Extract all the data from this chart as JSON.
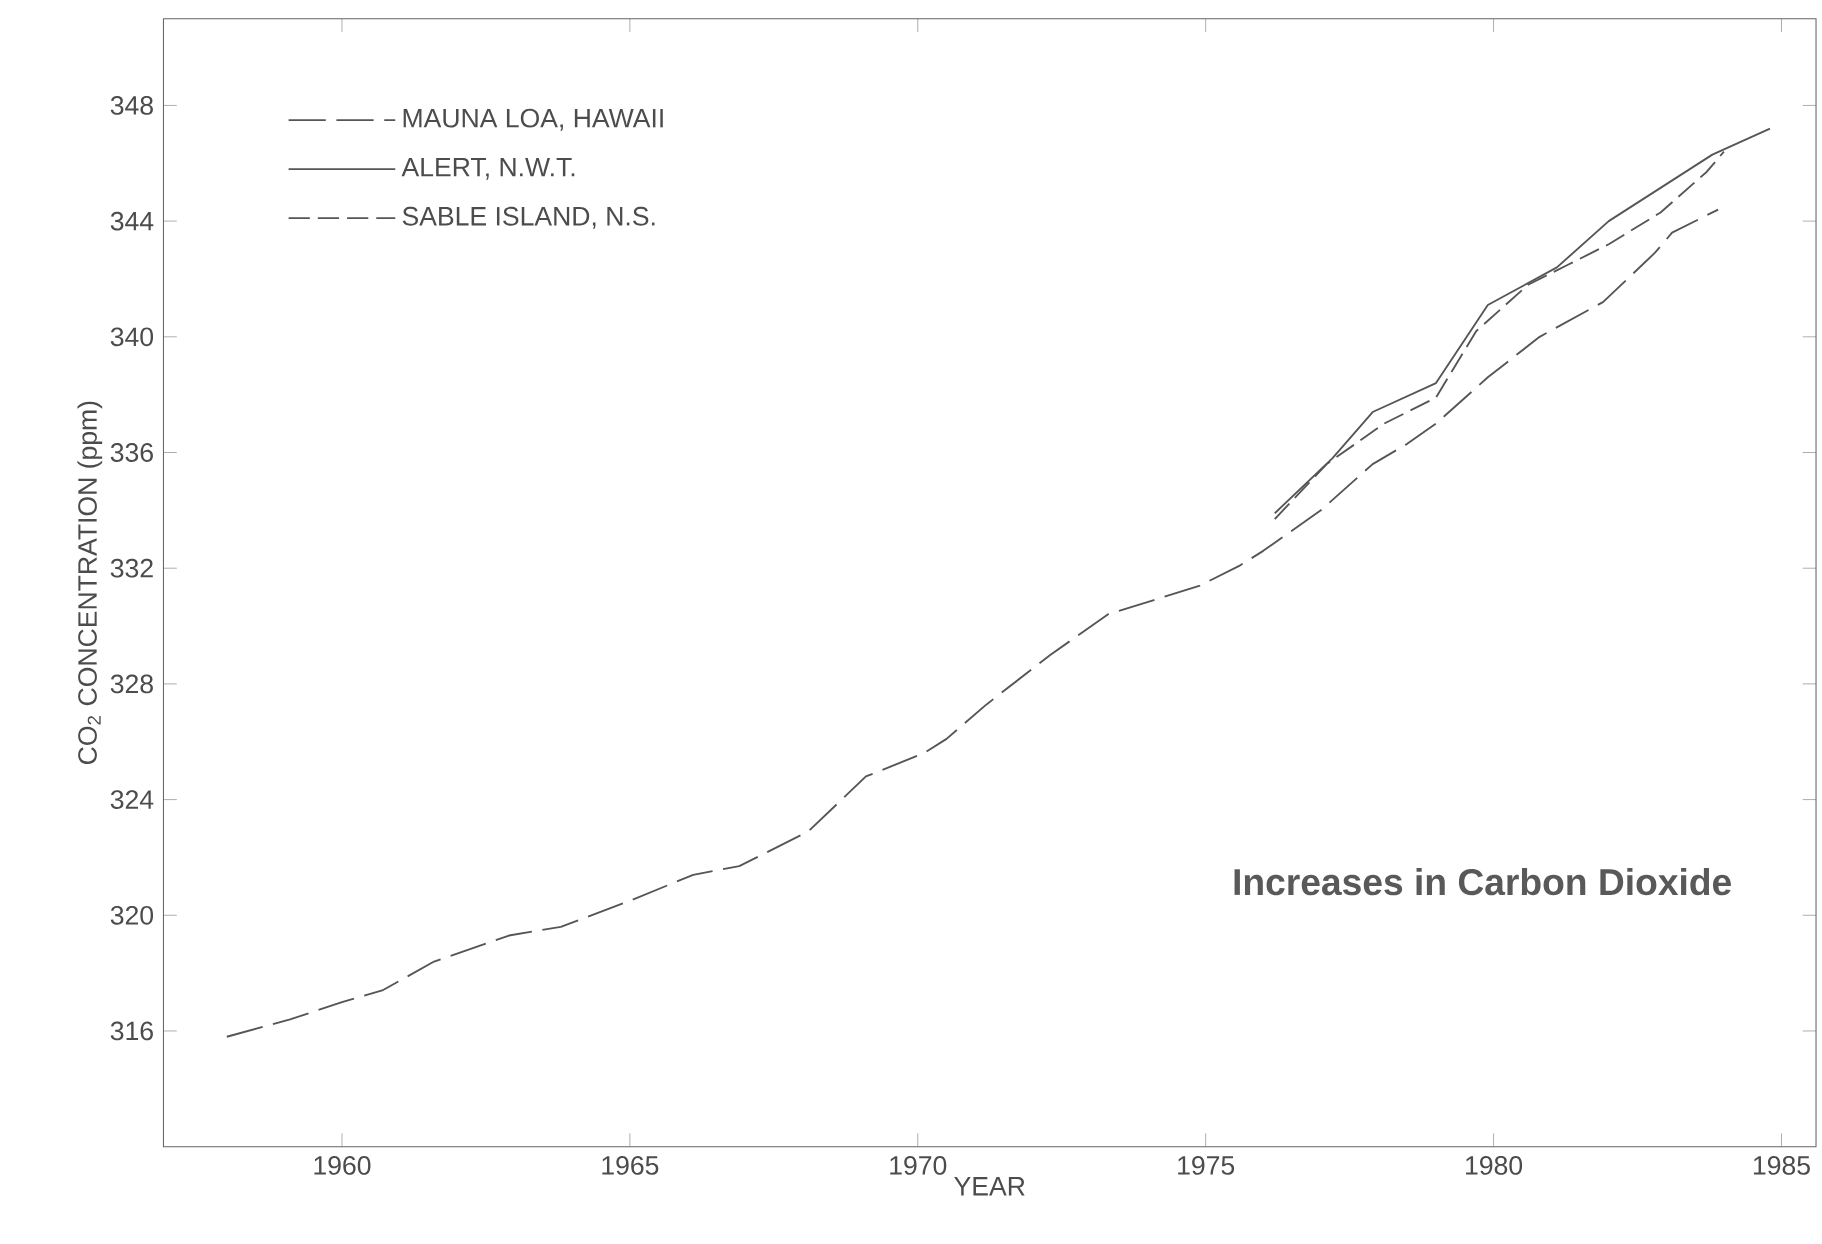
{
  "chart_data": {
    "type": "line",
    "xlabel": "YEAR",
    "ylabel": "CO$_{2}$ CONCENTRATION (ppm)",
    "annotations": [
      "Increases in Carbon Dioxide"
    ],
    "xlim": [
      1956.9,
      1985.6
    ],
    "ylim": [
      312,
      351
    ],
    "xticks": [
      1960,
      1965,
      1970,
      1975,
      1980,
      1985
    ],
    "yticks": [
      316,
      320,
      324,
      328,
      332,
      336,
      340,
      344,
      348
    ],
    "legend": "top left",
    "series": [
      {
        "name": "MAUNA LOA, HAWAII",
        "color": "#555555",
        "line_style": "dashed",
        "x": [
          1958.0,
          1959.1,
          1960.0,
          1960.7,
          1961.6,
          1962.9,
          1963.8,
          1965.0,
          1966.1,
          1966.9,
          1968.1,
          1969.1,
          1970.1,
          1970.5,
          1971.2,
          1972.3,
          1973.3,
          1974.1,
          1974.9,
          1975.6,
          1976.0,
          1977.0,
          1977.9,
          1978.5,
          1979.0,
          1979.9,
          1980.8,
          1981.9,
          1982.8,
          1983.1,
          1983.9
        ],
        "values": [
          315.8,
          316.4,
          317.0,
          317.4,
          318.4,
          319.3,
          319.6,
          320.5,
          321.4,
          321.7,
          322.9,
          324.8,
          325.6,
          326.1,
          327.3,
          329.0,
          330.4,
          330.9,
          331.4,
          332.1,
          332.6,
          334.0,
          335.6,
          336.3,
          337.0,
          338.6,
          340.0,
          341.2,
          342.9,
          343.6,
          344.4
        ]
      },
      {
        "name": "ALERT, N.W.T.",
        "color": "#555555",
        "line_style": "solid",
        "x": [
          1976.2,
          1977.2,
          1977.9,
          1979.0,
          1979.9,
          1981.1,
          1982.0,
          1983.8,
          1984.8
        ],
        "values": [
          333.9,
          335.8,
          337.4,
          338.4,
          341.1,
          342.4,
          344.0,
          346.3,
          347.2
        ]
      },
      {
        "name": "SABLE ISLAND, N.S.",
        "color": "#555555",
        "line_style": "dashed",
        "x": [
          1976.2,
          1977.1,
          1978.1,
          1979.0,
          1979.7,
          1980.6,
          1981.3,
          1982.0,
          1982.9,
          1983.7,
          1984.0
        ],
        "values": [
          333.7,
          335.6,
          337.0,
          337.9,
          340.2,
          341.8,
          342.5,
          343.2,
          344.3,
          345.7,
          346.4
        ]
      }
    ]
  }
}
